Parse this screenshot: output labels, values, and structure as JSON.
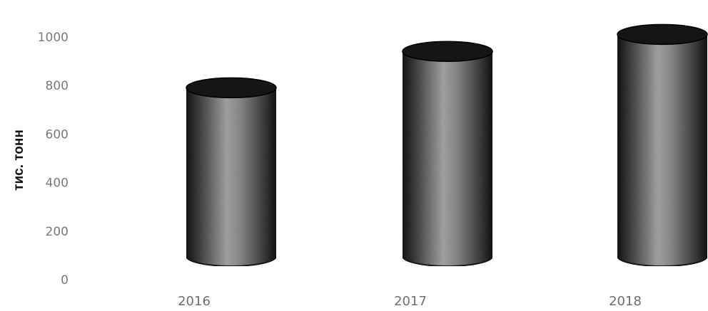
{
  "chart_data": {
    "type": "bar",
    "style": "3d-cylinder",
    "title": "",
    "xlabel": "",
    "ylabel": "тис. тонн",
    "categories": [
      "2016",
      "2017",
      "2018"
    ],
    "values": [
      820,
      970,
      1040
    ],
    "y_ticks": [
      "0",
      "200",
      "400",
      "600",
      "800",
      "1000"
    ],
    "ylim": [
      0,
      1000
    ],
    "grid": false,
    "legend": "none",
    "colors": {
      "bar_body": "#7f7f7f",
      "bar_edge": "#1a1a1a",
      "bar_top": "#151515",
      "tick_text": "#7a7a7a",
      "axis_title": "#111111"
    }
  }
}
